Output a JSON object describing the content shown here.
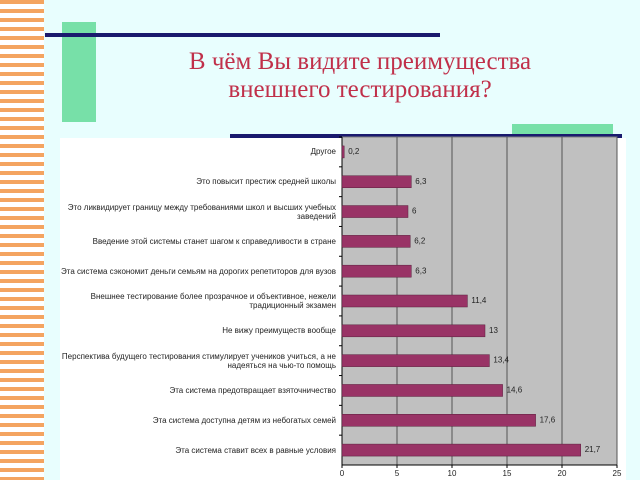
{
  "chart_data": {
    "type": "barh",
    "title": [
      "В чём Вы видите  преимущества",
      "внешнего тестирования?"
    ],
    "categories": [
      "Другое",
      "Это повысит престиж средней школы",
      "Это ликвидирует границу между требованиями школ и высших учебных заведений",
      "Введение этой системы станет шагом к справедливости в стране",
      "Эта система сэкономит деньги семьям на дорогих репетиторов для вузов",
      "Внешнее тестирование более прозрачное и объективное, нежели традиционный экзамен",
      "Не вижу преимуществ вообще",
      "Перспектива будущего тестирования стимулирует учеников учиться, а не надеяться на чью-то помощь",
      "Эта система предотвращает взяточничество",
      "Эта система доступна детям из небогатых семей",
      "Эта система ставит всех в равные условия"
    ],
    "values": [
      0.2,
      6.3,
      6,
      6.2,
      6.3,
      11.4,
      13,
      13.4,
      14.6,
      17.6,
      21.7
    ],
    "value_labels": [
      "0,2",
      "6,3",
      "6",
      "6,2",
      "6,3",
      "11,4",
      "13",
      "13,4",
      "14,6",
      "17,6",
      "21,7"
    ],
    "color": "#993366",
    "xlim": [
      0,
      25
    ],
    "xticks": [
      0,
      5,
      10,
      15,
      20,
      25
    ],
    "grid": true
  }
}
